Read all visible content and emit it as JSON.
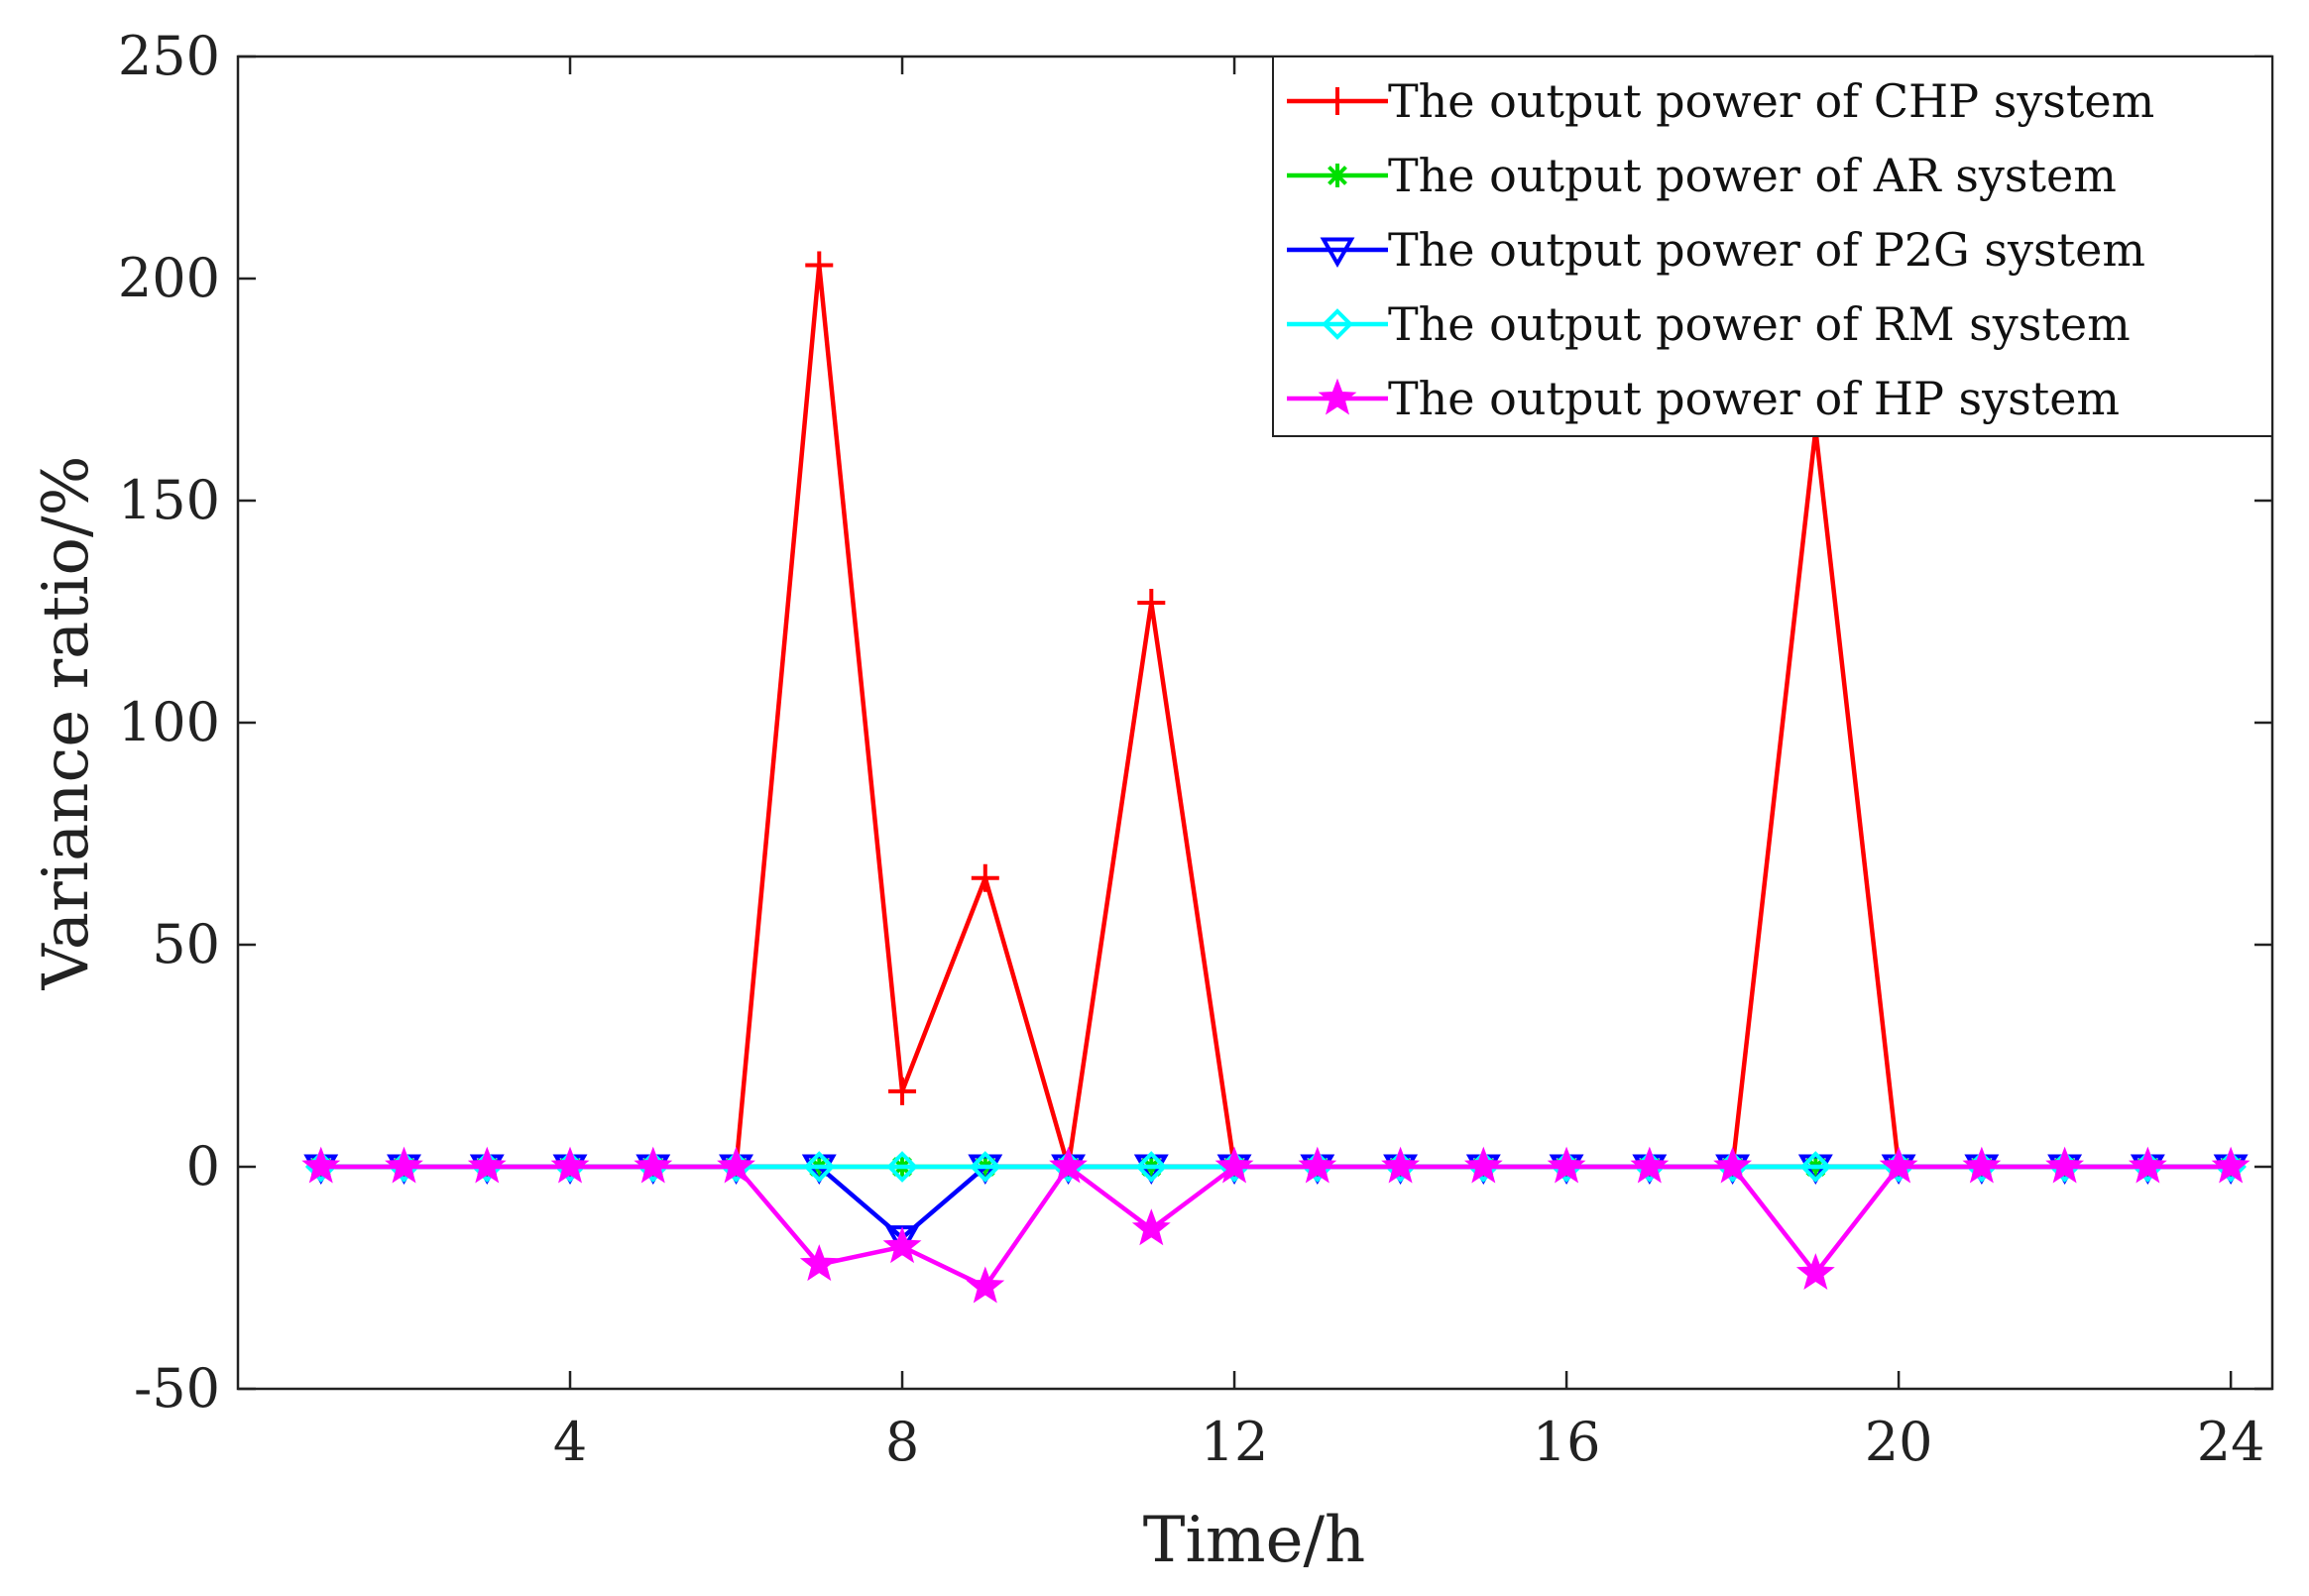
{
  "chart_data": {
    "type": "line",
    "title": "",
    "xlabel": "Time/h",
    "ylabel": "Variance ratio/%",
    "xlim": [
      0,
      24.5
    ],
    "ylim": [
      -50,
      250
    ],
    "xticks": [
      4,
      8,
      12,
      16,
      20,
      24
    ],
    "yticks": [
      -50,
      0,
      50,
      100,
      150,
      200,
      250
    ],
    "xtick_labels": [
      "4",
      "8",
      "12",
      "16",
      "20",
      "24"
    ],
    "ytick_labels": [
      "-50",
      "0",
      "50",
      "100",
      "150",
      "200",
      "250"
    ],
    "grid": false,
    "legend_position": "top-right",
    "x": [
      1,
      2,
      3,
      4,
      5,
      6,
      7,
      8,
      9,
      10,
      11,
      12,
      13,
      14,
      15,
      16,
      17,
      18,
      19,
      20,
      21,
      22,
      23,
      24
    ],
    "series": [
      {
        "name": "The output power of CHP system",
        "color": "#ff0000",
        "marker": "plus",
        "values": [
          0,
          0,
          0,
          0,
          0,
          0,
          203,
          17,
          65,
          0,
          127,
          0,
          0,
          0,
          0,
          0,
          0,
          0,
          166,
          0,
          0,
          0,
          0,
          0
        ]
      },
      {
        "name": "The output power of AR system",
        "color": "#00e000",
        "marker": "asterisk",
        "values": [
          0,
          0,
          0,
          0,
          0,
          0,
          0,
          0,
          0,
          0,
          0,
          0,
          0,
          0,
          0,
          0,
          0,
          0,
          0,
          0,
          0,
          0,
          0,
          0
        ]
      },
      {
        "name": "The output power of P2G system",
        "color": "#0000ff",
        "marker": "triangle-down",
        "values": [
          0,
          0,
          0,
          0,
          0,
          0,
          0,
          -16,
          0,
          0,
          0,
          0,
          0,
          0,
          0,
          0,
          0,
          0,
          0,
          0,
          0,
          0,
          0,
          0
        ]
      },
      {
        "name": "The output power of RM system",
        "color": "#00ffff",
        "marker": "diamond",
        "values": [
          0,
          0,
          0,
          0,
          0,
          0,
          0,
          0,
          0,
          0,
          0,
          0,
          0,
          0,
          0,
          0,
          0,
          0,
          0,
          0,
          0,
          0,
          0,
          0
        ]
      },
      {
        "name": "The output power of HP system",
        "color": "#ff00ff",
        "marker": "star",
        "values": [
          0,
          0,
          0,
          0,
          0,
          0,
          -22,
          -18,
          -27,
          0,
          -14,
          0,
          0,
          0,
          0,
          0,
          0,
          0,
          -24,
          0,
          0,
          0,
          0,
          0
        ]
      }
    ]
  }
}
